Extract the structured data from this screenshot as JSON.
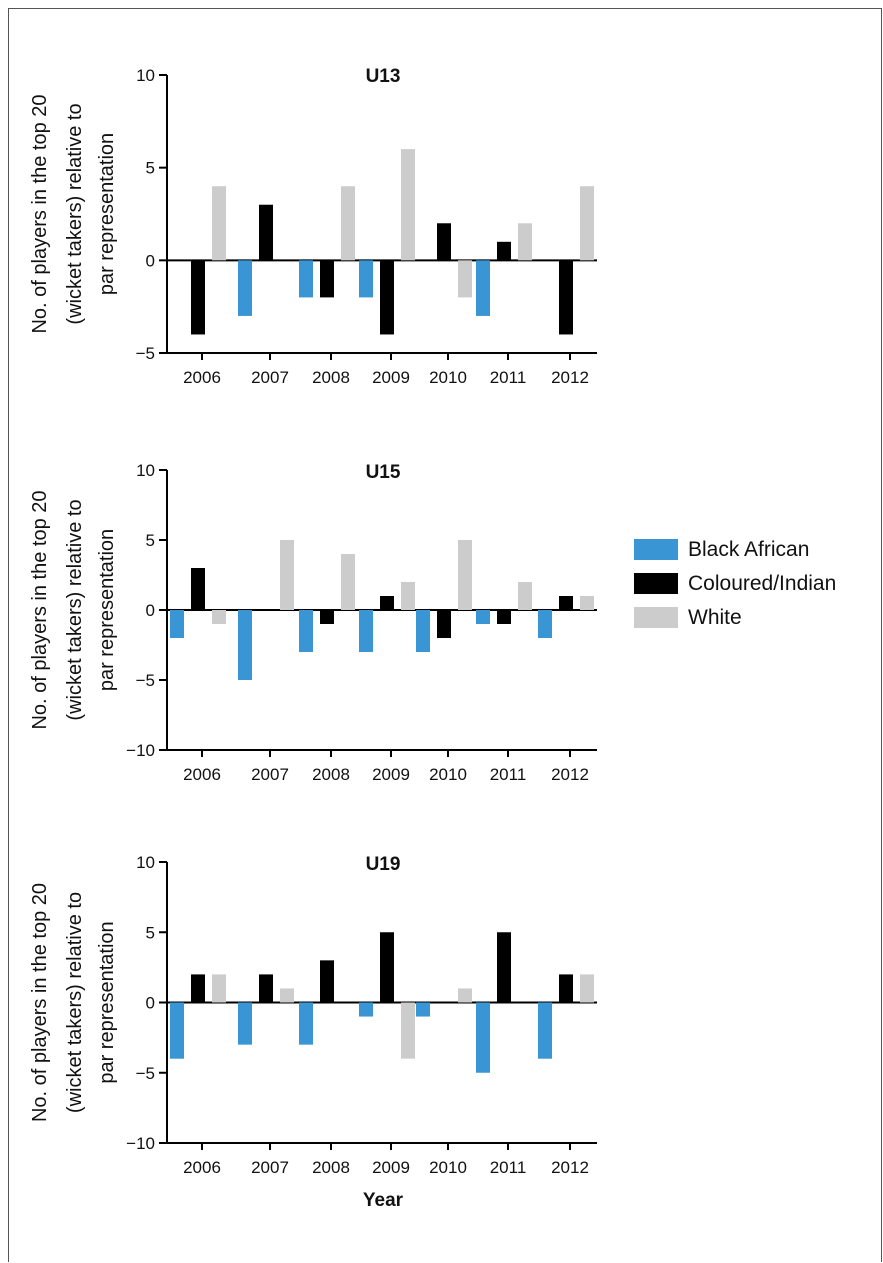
{
  "chart_data": [
    {
      "type": "bar",
      "title": "U13",
      "ylabel_lines": [
        "No. of players in the top 20",
        "(wicket takers) relative to",
        "par representation"
      ],
      "xlabel": "",
      "categories": [
        "2006",
        "2007",
        "2008",
        "2009",
        "2010",
        "2011",
        "2012"
      ],
      "ylim": [
        -5,
        10
      ],
      "yticks": [
        -5,
        0,
        5,
        10
      ],
      "ytick_labels": [
        "−5",
        "0",
        "5",
        "10"
      ],
      "series": [
        {
          "name": "Black African",
          "values": [
            0,
            -3,
            -2,
            -2,
            0,
            -3,
            0
          ]
        },
        {
          "name": "Coloured/Indian",
          "values": [
            -4,
            3,
            -2,
            -4,
            2,
            1,
            -4
          ]
        },
        {
          "name": "White",
          "values": [
            4,
            0,
            4,
            6,
            -2,
            2,
            4
          ]
        }
      ]
    },
    {
      "type": "bar",
      "title": "U15",
      "ylabel_lines": [
        "No. of players in the top 20",
        "(wicket takers) relative to",
        "par representation"
      ],
      "xlabel": "",
      "categories": [
        "2006",
        "2007",
        "2008",
        "2009",
        "2010",
        "2011",
        "2012"
      ],
      "ylim": [
        -10,
        10
      ],
      "yticks": [
        -10,
        -5,
        0,
        5,
        10
      ],
      "ytick_labels": [
        "−10",
        "−5",
        "0",
        "5",
        "10"
      ],
      "series": [
        {
          "name": "Black African",
          "values": [
            -2,
            -5,
            -3,
            -3,
            -3,
            -1,
            -2
          ]
        },
        {
          "name": "Coloured/Indian",
          "values": [
            3,
            0,
            -1,
            1,
            -2,
            -1,
            1
          ]
        },
        {
          "name": "White",
          "values": [
            -1,
            5,
            4,
            2,
            5,
            2,
            1
          ]
        }
      ]
    },
    {
      "type": "bar",
      "title": "U19",
      "ylabel_lines": [
        "No. of players in the top 20",
        "(wicket takers) relative to",
        "par representation"
      ],
      "xlabel": "Year",
      "categories": [
        "2006",
        "2007",
        "2008",
        "2009",
        "2010",
        "2011",
        "2012"
      ],
      "ylim": [
        -10,
        10
      ],
      "yticks": [
        -10,
        -5,
        0,
        5,
        10
      ],
      "ytick_labels": [
        "−10",
        "−5",
        "0",
        "5",
        "10"
      ],
      "series": [
        {
          "name": "Black African",
          "values": [
            -4,
            -3,
            -3,
            -1,
            -1,
            -5,
            -4
          ]
        },
        {
          "name": "Coloured/Indian",
          "values": [
            2,
            2,
            3,
            5,
            0,
            5,
            2
          ]
        },
        {
          "name": "White",
          "values": [
            2,
            1,
            0,
            -4,
            1,
            0,
            2
          ]
        }
      ]
    }
  ],
  "legend": {
    "items": [
      {
        "label": "Black African",
        "color": "#3a95d4"
      },
      {
        "label": "Coloured/Indian",
        "color": "#000000"
      },
      {
        "label": "White",
        "color": "#cccccc"
      }
    ]
  },
  "colors": {
    "Black African": "#3a95d4",
    "Coloured/Indian": "#000000",
    "White": "#cccccc"
  }
}
